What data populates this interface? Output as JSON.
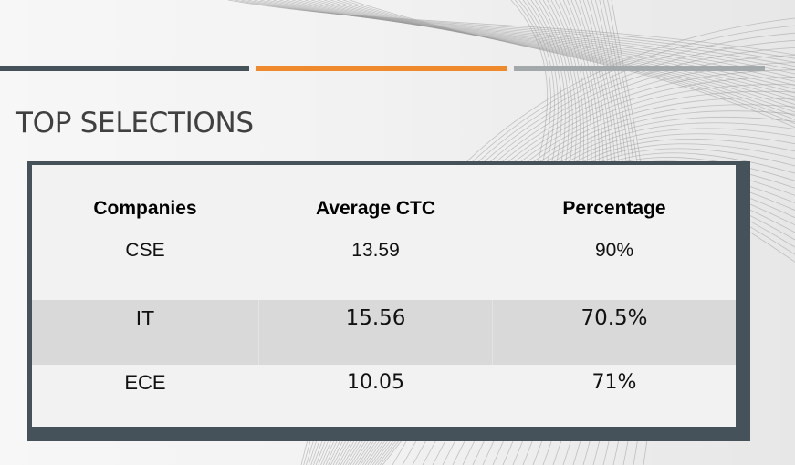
{
  "slide": {
    "title": "TOP SELECTIONS"
  },
  "theme": {
    "bar_colors": [
      "#45525a",
      "#ee8a2c",
      "#a3a8ab"
    ],
    "frame_color": "#45525a",
    "header_row_color": "#f2f2f2",
    "alt_row_color": "#d9d9d9"
  },
  "table": {
    "headers": [
      "Companies",
      "Average CTC",
      "Percentage"
    ],
    "rows": [
      [
        "CSE",
        "13.59",
        "90%"
      ],
      [
        "IT",
        "15.56",
        "70.5%"
      ],
      [
        "ECE",
        "10.05",
        "71%"
      ]
    ]
  }
}
